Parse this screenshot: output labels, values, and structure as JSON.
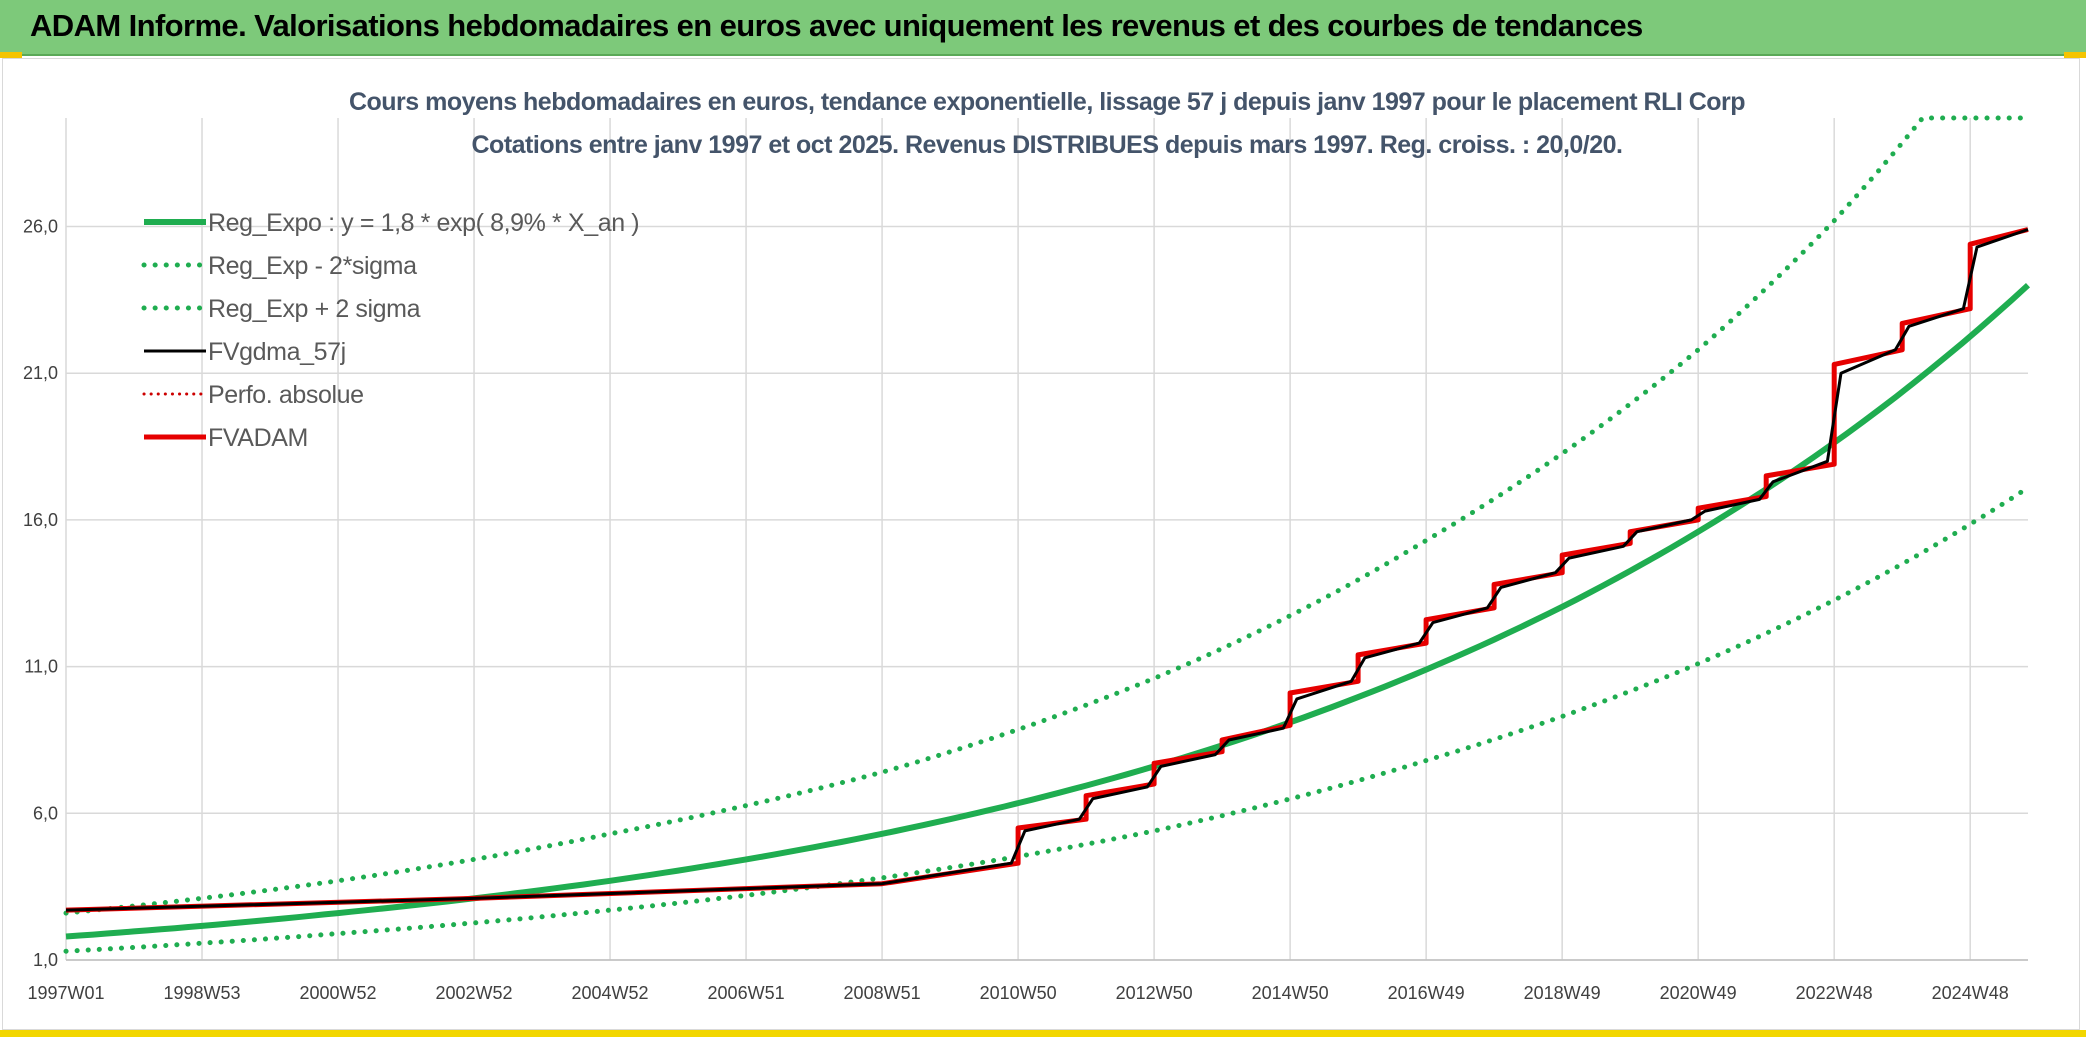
{
  "banner": {
    "title": "ADAM Informe. Valorisations hebdomadaires en euros avec uniquement les revenus et des courbes de tendances"
  },
  "colors": {
    "banner": "#7dc97a",
    "trend": "#1fad50",
    "smoothed": "#000000",
    "fvadam": "#e60000",
    "perfo": "#cc0000",
    "grid": "#d9d9d9"
  },
  "chart_data": {
    "type": "line",
    "title": [
      "Cours moyens hebdomadaires en euros, tendance exponentielle, lissage 57 j depuis janv 1997 pour le placement RLI Corp",
      "Cotations entre janv 1997 et oct 2025. Revenus DISTRIBUES depuis mars 1997. Reg. croiss. : 20,0/20."
    ],
    "xlabel": "",
    "ylabel": "",
    "ylim": [
      1,
      29.7
    ],
    "xlim": [
      1997.0,
      2025.85
    ],
    "grid": true,
    "legend_position": "top-left",
    "y_ticks": [
      {
        "value": 1,
        "label": "1,0"
      },
      {
        "value": 6,
        "label": "6,0"
      },
      {
        "value": 11,
        "label": "11,0"
      },
      {
        "value": 16,
        "label": "16,0"
      },
      {
        "value": 21,
        "label": "21,0"
      },
      {
        "value": 26,
        "label": "26,0"
      }
    ],
    "x_ticks": [
      {
        "value": 1997.0,
        "label": "1997W01"
      },
      {
        "value": 1999.0,
        "label": "1998W53"
      },
      {
        "value": 2001.0,
        "label": "2000W52"
      },
      {
        "value": 2003.0,
        "label": "2002W52"
      },
      {
        "value": 2005.0,
        "label": "2004W52"
      },
      {
        "value": 2007.0,
        "label": "2006W51"
      },
      {
        "value": 2009.0,
        "label": "2008W51"
      },
      {
        "value": 2011.0,
        "label": "2010W50"
      },
      {
        "value": 2013.0,
        "label": "2012W50"
      },
      {
        "value": 2015.0,
        "label": "2014W50"
      },
      {
        "value": 2017.0,
        "label": "2016W49"
      },
      {
        "value": 2019.0,
        "label": "2018W49"
      },
      {
        "value": 2021.0,
        "label": "2020W49"
      },
      {
        "value": 2023.0,
        "label": "2022W48"
      },
      {
        "value": 2025.0,
        "label": "2024W48"
      }
    ],
    "series": [
      {
        "name": "Reg_Expo : y = 1,8 * exp( 8,9% *  X_an )",
        "style": "solid-green",
        "x": [
          1997.0,
          2001.0,
          2005.0,
          2009.0,
          2013.0,
          2017.0,
          2021.0,
          2025.85
        ],
        "values": [
          1.8,
          2.6,
          3.7,
          5.3,
          7.6,
          10.9,
          15.6,
          24.0
        ]
      },
      {
        "name": "Reg_Exp - 2*sigma",
        "style": "dotted-green",
        "x": [
          1997.0,
          2001.0,
          2005.0,
          2009.0,
          2013.0,
          2017.0,
          2021.0,
          2025.85
        ],
        "values": [
          1.3,
          1.9,
          2.7,
          3.8,
          5.4,
          7.8,
          11.1,
          17.1
        ]
      },
      {
        "name": "Reg_Exp + 2 sigma",
        "style": "dotted-green",
        "x": [
          1997.0,
          2001.0,
          2005.0,
          2009.0,
          2013.0,
          2017.0,
          2021.0,
          2023.0,
          2024.3,
          2025.85
        ],
        "values": [
          2.6,
          3.7,
          5.3,
          7.4,
          10.6,
          15.3,
          21.8,
          26.2,
          29.7,
          29.7
        ]
      },
      {
        "name": "FVgdma_57j",
        "style": "solid-black",
        "x": [
          1997.0,
          2003.0,
          2009.0,
          2010.9,
          2011.1,
          2011.9,
          2012.1,
          2012.9,
          2013.1,
          2013.9,
          2014.1,
          2014.9,
          2015.1,
          2015.9,
          2016.1,
          2016.9,
          2017.1,
          2017.9,
          2018.1,
          2018.9,
          2019.1,
          2019.9,
          2020.1,
          2020.9,
          2021.1,
          2021.9,
          2022.1,
          2022.9,
          2023.1,
          2023.9,
          2024.1,
          2024.9,
          2025.1,
          2025.85
        ],
        "values": [
          2.7,
          3.1,
          3.6,
          4.3,
          5.4,
          5.8,
          6.5,
          6.9,
          7.6,
          8.0,
          8.5,
          8.9,
          9.9,
          10.5,
          11.3,
          11.8,
          12.5,
          13.0,
          13.7,
          14.2,
          14.7,
          15.1,
          15.6,
          16.0,
          16.3,
          16.7,
          17.3,
          18.0,
          21.0,
          21.8,
          22.6,
          23.2,
          25.3,
          25.9
        ]
      },
      {
        "name": "Perfo. absolue",
        "style": "dotted-red",
        "x": [],
        "values": []
      },
      {
        "name": "FVADAM",
        "style": "solid-red",
        "x": [
          1997.0,
          2003.0,
          2009.0,
          2011.0,
          2011.0,
          2012.0,
          2012.0,
          2013.0,
          2013.0,
          2014.0,
          2014.0,
          2015.0,
          2015.0,
          2016.0,
          2016.0,
          2017.0,
          2017.0,
          2018.0,
          2018.0,
          2019.0,
          2019.0,
          2020.0,
          2020.0,
          2021.0,
          2021.0,
          2022.0,
          2022.0,
          2023.0,
          2023.0,
          2024.0,
          2024.0,
          2025.0,
          2025.0,
          2025.85
        ],
        "values": [
          2.7,
          3.1,
          3.6,
          4.3,
          5.5,
          5.8,
          6.6,
          7.0,
          7.7,
          8.1,
          8.5,
          9.0,
          10.1,
          10.5,
          11.4,
          11.8,
          12.6,
          13.0,
          13.8,
          14.2,
          14.8,
          15.2,
          15.6,
          16.0,
          16.4,
          16.8,
          17.5,
          17.9,
          21.3,
          21.8,
          22.7,
          23.2,
          25.4,
          25.9
        ]
      }
    ]
  }
}
